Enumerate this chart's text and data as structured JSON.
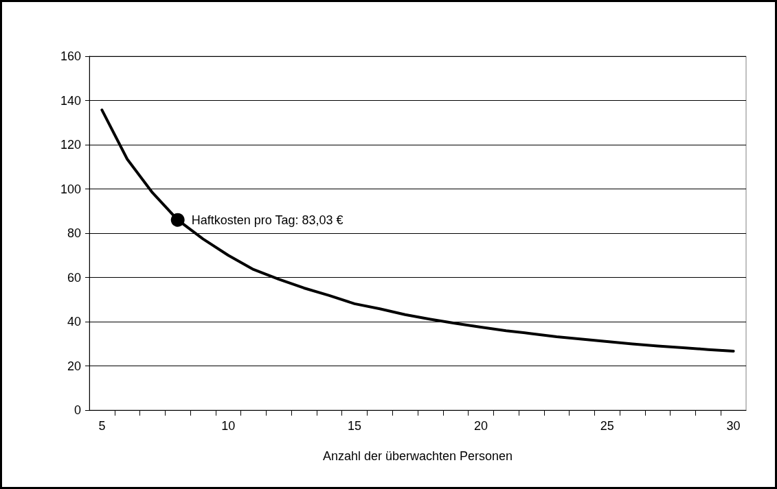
{
  "chart_data": {
    "type": "line",
    "xlabel": "Anzahl der überwachten Personen",
    "x": [
      5,
      6,
      7,
      8,
      9,
      10,
      11,
      12,
      13,
      14,
      15,
      16,
      17,
      18,
      19,
      20,
      21,
      22,
      23,
      24,
      25,
      26,
      27,
      28,
      29,
      30
    ],
    "series": [
      {
        "color": "#000000",
        "values": [
          135.7,
          113.5,
          98.3,
          86.0,
          77.4,
          70.0,
          63.6,
          59.2,
          55.2,
          51.8,
          48.1,
          45.8,
          43.2,
          41.1,
          39.2,
          37.5,
          35.9,
          34.6,
          33.2,
          32.1,
          31.0,
          29.9,
          29.0,
          28.2,
          27.4,
          26.7
        ]
      }
    ],
    "xlim": [
      4.5,
      30.5
    ],
    "xticks": [
      5,
      10,
      15,
      20,
      25,
      30,
      {
        "value": 5.5,
        "label": null
      },
      {
        "value": 6.5,
        "label": null
      },
      {
        "value": 7.5,
        "label": null
      },
      {
        "value": 8.5,
        "label": null
      },
      {
        "value": 9.5,
        "label": null
      },
      {
        "value": 10.5,
        "label": null
      },
      {
        "value": 11.5,
        "label": null
      },
      {
        "value": 12.5,
        "label": null
      },
      {
        "value": 13.5,
        "label": null
      },
      {
        "value": 14.5,
        "label": null
      },
      {
        "value": 15.5,
        "label": null
      },
      {
        "value": 16.5,
        "label": null
      },
      {
        "value": 17.5,
        "label": null
      },
      {
        "value": 18.5,
        "label": null
      },
      {
        "value": 19.5,
        "label": null
      },
      {
        "value": 20.5,
        "label": null
      },
      {
        "value": 21.5,
        "label": null
      },
      {
        "value": 22.5,
        "label": null
      },
      {
        "value": 23.5,
        "label": null
      },
      {
        "value": 24.5,
        "label": null
      },
      {
        "value": 25.5,
        "label": null
      },
      {
        "value": 26.5,
        "label": null
      },
      {
        "value": 27.5,
        "label": null
      },
      {
        "value": 28.5,
        "label": null
      },
      {
        "value": 29.5,
        "label": null
      }
    ],
    "ylim": [
      0,
      160
    ],
    "yticks": [
      0,
      20,
      40,
      60,
      80,
      100,
      120,
      140,
      160
    ],
    "grid": "y",
    "marker": "none",
    "line_style": "solid",
    "annotations": [
      {
        "text": "Haftkosten pro Tag: 83,03 €",
        "x": 8,
        "y": 86.0
      }
    ]
  }
}
